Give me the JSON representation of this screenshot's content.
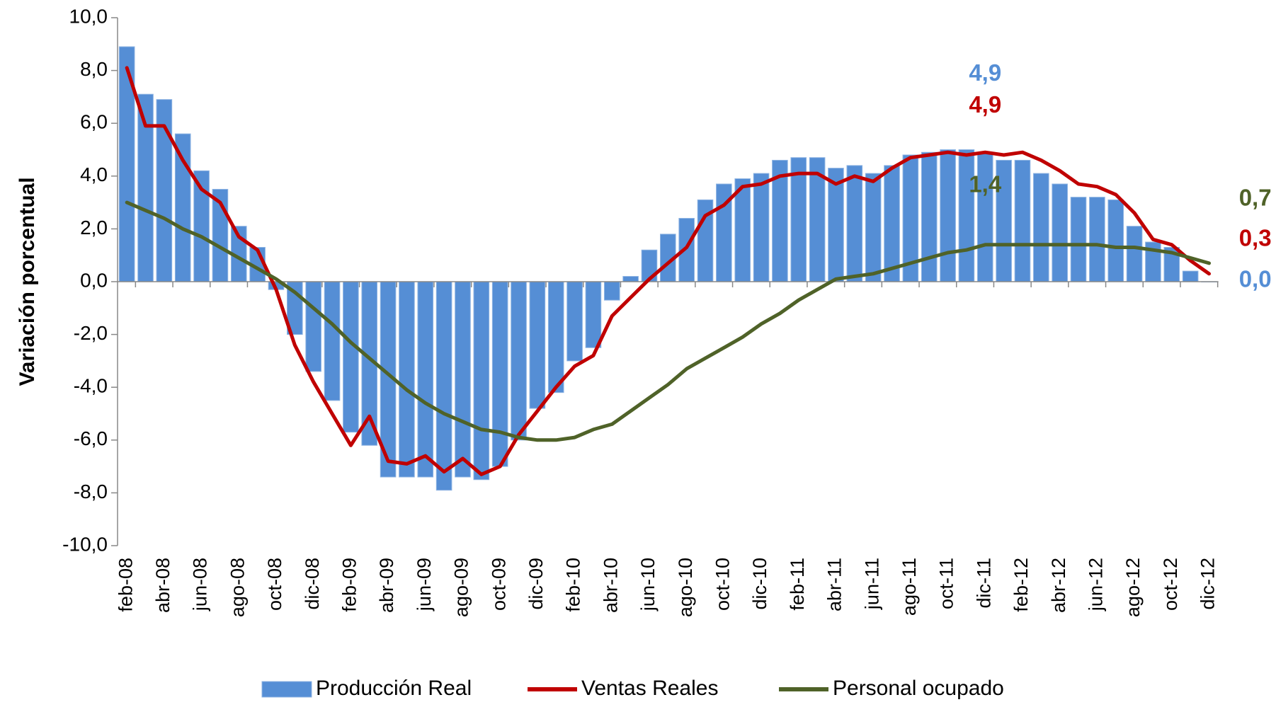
{
  "chart_data": {
    "type": "bar-line",
    "y_label": "Variación  porcentual",
    "categories": [
      "feb-08",
      null,
      "abr-08",
      null,
      "jun-08",
      null,
      "ago-08",
      null,
      "oct-08",
      null,
      "dic-08",
      null,
      "feb-09",
      null,
      "abr-09",
      null,
      "jun-09",
      null,
      "ago-09",
      null,
      "oct-09",
      null,
      "dic-09",
      null,
      "feb-10",
      null,
      "abr-10",
      null,
      "jun-10",
      null,
      "ago-10",
      null,
      "oct-10",
      null,
      "dic-10",
      null,
      "feb-11",
      null,
      "abr-11",
      null,
      "jun-11",
      null,
      "ago-11",
      null,
      "oct-11",
      null,
      "dic-11",
      null,
      "feb-12",
      null,
      "abr-12",
      null,
      "jun-12",
      null,
      "ago-12",
      null,
      "oct-12",
      null,
      "dic-12"
    ],
    "series": [
      {
        "name": "Producción Real",
        "kind": "bar",
        "color": "#558ed5",
        "values": [
          8.9,
          7.1,
          6.9,
          5.6,
          4.2,
          3.5,
          2.1,
          1.3,
          -0.3,
          -2.0,
          -3.4,
          -4.5,
          -5.7,
          -6.2,
          -7.4,
          -7.4,
          -7.4,
          -7.9,
          -7.4,
          -7.5,
          -7.0,
          -6.0,
          -4.8,
          -4.2,
          -3.0,
          -2.5,
          -0.7,
          0.2,
          1.2,
          1.8,
          2.4,
          3.1,
          3.7,
          3.9,
          4.1,
          4.6,
          4.7,
          4.7,
          4.3,
          4.4,
          4.1,
          4.4,
          4.8,
          4.9,
          5.0,
          5.0,
          4.9,
          4.6,
          4.6,
          4.1,
          3.7,
          3.2,
          3.2,
          3.1,
          2.1,
          1.5,
          1.3,
          0.4,
          0.0
        ],
        "value_labels": [
          null,
          null,
          null,
          null,
          null,
          null,
          null,
          null,
          null,
          null,
          null,
          null,
          null,
          null,
          null,
          null,
          null,
          null,
          null,
          null,
          null,
          null,
          null,
          null,
          null,
          null,
          null,
          null,
          null,
          null,
          null,
          null,
          null,
          null,
          null,
          null,
          null,
          null,
          null,
          null,
          null,
          null,
          null,
          null,
          null,
          null,
          "4,9",
          null,
          null,
          null,
          null,
          null,
          null,
          null,
          null,
          null,
          null,
          null,
          "0,0"
        ]
      },
      {
        "name": "Ventas Reales",
        "kind": "line",
        "color": "#c00000",
        "values": [
          8.1,
          5.9,
          5.9,
          4.6,
          3.5,
          3.0,
          1.7,
          1.2,
          -0.3,
          -2.4,
          -3.8,
          -5.0,
          -6.2,
          -5.1,
          -6.8,
          -6.9,
          -6.6,
          -7.2,
          -6.7,
          -7.3,
          -7.0,
          -5.8,
          -4.9,
          -4.0,
          -3.2,
          -2.8,
          -1.3,
          -0.6,
          0.1,
          0.7,
          1.3,
          2.5,
          2.9,
          3.6,
          3.7,
          4.0,
          4.1,
          4.1,
          3.7,
          4.0,
          3.8,
          4.3,
          4.7,
          4.8,
          4.9,
          4.8,
          4.9,
          4.8,
          4.9,
          4.6,
          4.2,
          3.7,
          3.6,
          3.3,
          2.6,
          1.6,
          1.4,
          0.8,
          0.3
        ],
        "value_labels": [
          null,
          null,
          null,
          null,
          null,
          null,
          null,
          null,
          null,
          null,
          null,
          null,
          null,
          null,
          null,
          null,
          null,
          null,
          null,
          null,
          null,
          null,
          null,
          null,
          null,
          null,
          null,
          null,
          null,
          null,
          null,
          null,
          null,
          null,
          null,
          null,
          null,
          null,
          null,
          null,
          null,
          null,
          null,
          null,
          null,
          null,
          "4,9",
          null,
          null,
          null,
          null,
          null,
          null,
          null,
          null,
          null,
          null,
          null,
          "0,3"
        ]
      },
      {
        "name": "Personal ocupado",
        "kind": "line",
        "color": "#4f6228",
        "values": [
          3.0,
          2.7,
          2.4,
          2.0,
          1.7,
          1.3,
          0.9,
          0.5,
          0.1,
          -0.4,
          -1.0,
          -1.6,
          -2.3,
          -2.9,
          -3.5,
          -4.1,
          -4.6,
          -5.0,
          -5.3,
          -5.6,
          -5.7,
          -5.9,
          -6.0,
          -6.0,
          -5.9,
          -5.6,
          -5.4,
          -4.9,
          -4.4,
          -3.9,
          -3.3,
          -2.9,
          -2.5,
          -2.1,
          -1.6,
          -1.2,
          -0.7,
          -0.3,
          0.1,
          0.2,
          0.3,
          0.5,
          0.7,
          0.9,
          1.1,
          1.2,
          1.4,
          1.4,
          1.4,
          1.4,
          1.4,
          1.4,
          1.4,
          1.3,
          1.3,
          1.2,
          1.1,
          0.9,
          0.7
        ],
        "value_labels": [
          null,
          null,
          null,
          null,
          null,
          null,
          null,
          null,
          null,
          null,
          null,
          null,
          null,
          null,
          null,
          null,
          null,
          null,
          null,
          null,
          null,
          null,
          null,
          null,
          null,
          null,
          null,
          null,
          null,
          null,
          null,
          null,
          null,
          null,
          null,
          null,
          null,
          null,
          null,
          null,
          null,
          null,
          null,
          null,
          null,
          null,
          "1,4",
          null,
          null,
          null,
          null,
          null,
          null,
          null,
          null,
          null,
          null,
          null,
          "0,7"
        ]
      }
    ],
    "ylim": [
      -10,
      10
    ],
    "yticks": [
      {
        "value": -10,
        "label": "-10,0"
      },
      {
        "value": -8,
        "label": "-8,0"
      },
      {
        "value": -6,
        "label": "-6,0"
      },
      {
        "value": -4,
        "label": "-4,0"
      },
      {
        "value": -2,
        "label": "-2,0"
      },
      {
        "value": 0,
        "label": "0,0"
      },
      {
        "value": 2,
        "label": "2,0"
      },
      {
        "value": 4,
        "label": "4,0"
      },
      {
        "value": 6,
        "label": "6,0"
      },
      {
        "value": 8,
        "label": "8,0"
      },
      {
        "value": 10,
        "label": "10,0"
      }
    ],
    "legend": "bottom"
  }
}
